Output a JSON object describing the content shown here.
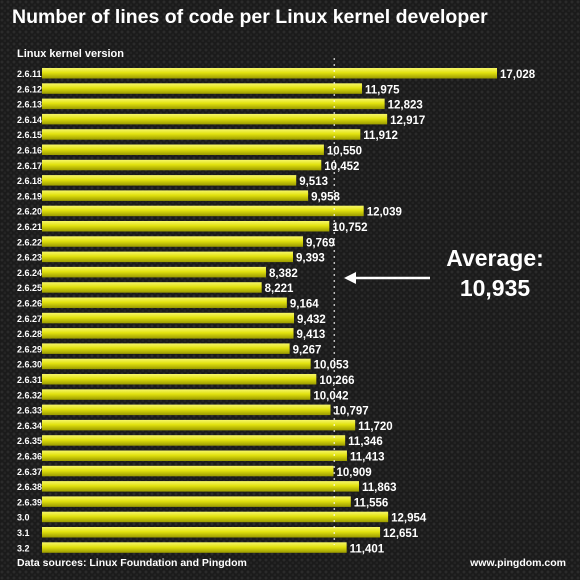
{
  "chart_data": {
    "type": "bar",
    "orientation": "horizontal",
    "title": "Number of lines of code per Linux kernel developer",
    "ylabel": "Linux kernel version",
    "categories": [
      "2.6.11",
      "2.6.12",
      "2.6.13",
      "2.6.14",
      "2.6.15",
      "2.6.16",
      "2.6.17",
      "2.6.18",
      "2.6.19",
      "2.6.20",
      "2.6.21",
      "2.6.22",
      "2.6.23",
      "2.6.24",
      "2.6.25",
      "2.6.26",
      "2.6.27",
      "2.6.28",
      "2.6.29",
      "2.6.30",
      "2.6.31",
      "2.6.32",
      "2.6.33",
      "2.6.34",
      "2.6.35",
      "2.6.36",
      "2.6.37",
      "2.6.38",
      "2.6.39",
      "3.0",
      "3.1",
      "3.2"
    ],
    "values": [
      17028,
      11975,
      12823,
      12917,
      11912,
      10550,
      10452,
      9513,
      9958,
      12039,
      10752,
      9769,
      9393,
      8382,
      8221,
      9164,
      9432,
      9413,
      9267,
      10053,
      10266,
      10042,
      10797,
      11720,
      11346,
      11413,
      10909,
      11863,
      11556,
      12954,
      12651,
      11401
    ],
    "value_labels": [
      "17,028",
      "11,975",
      "12,823",
      "12,917",
      "11,912",
      "10,550",
      "10,452",
      "9,513",
      "9,958",
      "12,039",
      "10,752",
      "9,769",
      "9,393",
      "8,382",
      "8,221",
      "9,164",
      "9,432",
      "9,413",
      "9,267",
      "10,053",
      "10,266",
      "10,042",
      "10,797",
      "11,720",
      "11,346",
      "11,413",
      "10,909",
      "11,863",
      "11,556",
      "12,954",
      "12,651",
      "11,401"
    ],
    "average": 10935,
    "annotation": {
      "line1": "Average:",
      "line2": "10,935"
    },
    "bar_color": "#e2e20e",
    "grid": false,
    "legend": "none"
  },
  "footer": {
    "source": "Data sources: Linux Foundation and Pingdom",
    "site": "www.pingdom.com"
  }
}
